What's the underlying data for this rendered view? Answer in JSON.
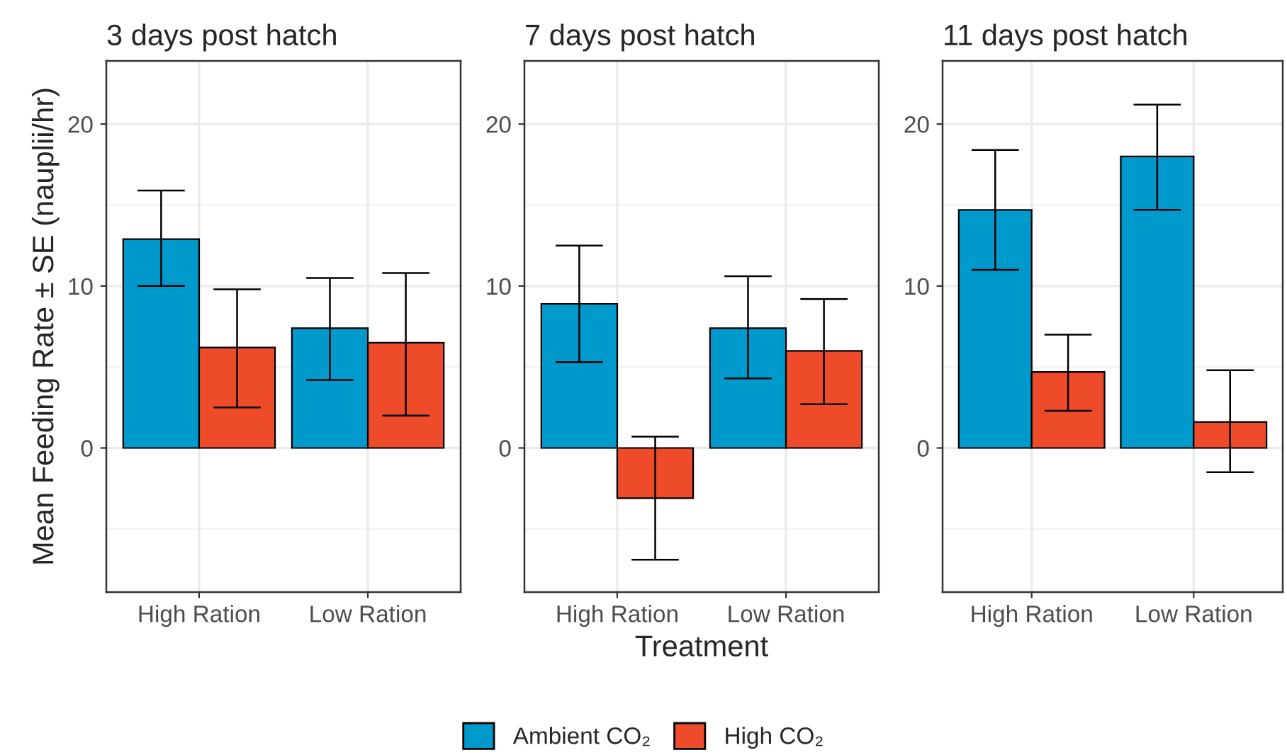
{
  "chart_data": [
    {
      "type": "bar",
      "title": "3 days post hatch",
      "ylabel": "Mean Feeding Rate ± SE (nauplii/hr)",
      "categories": [
        "High Ration",
        "Low Ration"
      ],
      "ylim": [
        -8.9,
        23.9
      ],
      "yticks": [
        0,
        10,
        20
      ],
      "grid": true,
      "legend": "bottom",
      "series": [
        {
          "name": "Ambient CO₂",
          "color": "#0099cc",
          "values": [
            12.9,
            7.4
          ],
          "errors": [
            [
              10.0,
              15.9
            ],
            [
              4.2,
              10.5
            ]
          ]
        },
        {
          "name": "High CO₂",
          "color": "#ee4b2b",
          "values": [
            6.2,
            6.5
          ],
          "errors": [
            [
              2.5,
              9.8
            ],
            [
              2.0,
              10.8
            ]
          ]
        }
      ]
    },
    {
      "type": "bar",
      "title": "7 days post hatch",
      "xlabel": "Treatment",
      "categories": [
        "High Ration",
        "Low Ration"
      ],
      "ylim": [
        -8.9,
        23.9
      ],
      "yticks": [
        0,
        10,
        20
      ],
      "grid": true,
      "series": [
        {
          "color": "#0099cc",
          "values": [
            8.9,
            7.4
          ],
          "errors": [
            [
              5.3,
              12.5
            ],
            [
              4.3,
              10.6
            ]
          ]
        },
        {
          "color": "#ee4b2b",
          "values": [
            -3.1,
            6.0
          ],
          "errors": [
            [
              -6.9,
              0.7
            ],
            [
              2.7,
              9.2
            ]
          ]
        }
      ]
    },
    {
      "type": "bar",
      "title": "11 days post hatch",
      "categories": [
        "High Ration",
        "Low Ration"
      ],
      "ylim": [
        -8.9,
        23.9
      ],
      "yticks": [
        0,
        10,
        20
      ],
      "grid": true,
      "series": [
        {
          "color": "#0099cc",
          "values": [
            14.7,
            18.0
          ],
          "errors": [
            [
              11.0,
              18.4
            ],
            [
              14.7,
              21.2
            ]
          ]
        },
        {
          "color": "#ee4b2b",
          "values": [
            4.7,
            1.6
          ],
          "errors": [
            [
              2.3,
              7.0
            ],
            [
              -1.5,
              4.8
            ]
          ]
        }
      ]
    }
  ]
}
